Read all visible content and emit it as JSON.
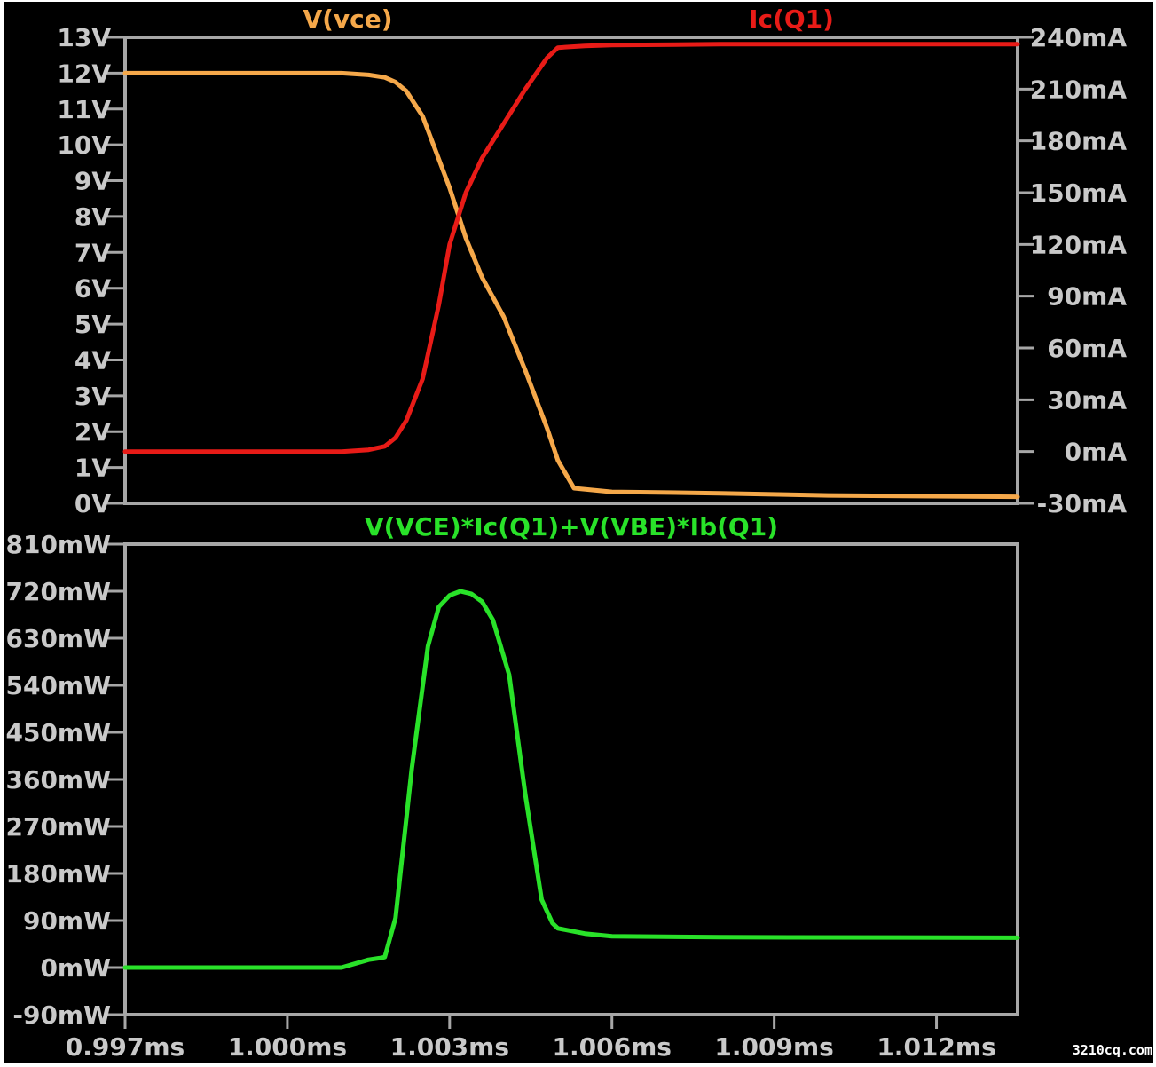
{
  "chart_data": [
    {
      "type": "line",
      "pane": "top",
      "x_unit": "ms",
      "xlim": [
        0.997,
        1.0135
      ],
      "x_ticks": [],
      "left_axis": {
        "ylim": [
          0,
          13
        ],
        "ticks": [
          {
            "value": 0,
            "label": "0V"
          },
          {
            "value": 1,
            "label": "1V"
          },
          {
            "value": 2,
            "label": "2V"
          },
          {
            "value": 3,
            "label": "3V"
          },
          {
            "value": 4,
            "label": "4V"
          },
          {
            "value": 5,
            "label": "5V"
          },
          {
            "value": 6,
            "label": "6V"
          },
          {
            "value": 7,
            "label": "7V"
          },
          {
            "value": 8,
            "label": "8V"
          },
          {
            "value": 9,
            "label": "9V"
          },
          {
            "value": 10,
            "label": "10V"
          },
          {
            "value": 11,
            "label": "11V"
          },
          {
            "value": 12,
            "label": "12V"
          },
          {
            "value": 13,
            "label": "13V"
          }
        ]
      },
      "right_axis": {
        "ylim": [
          -30,
          240
        ],
        "ticks": [
          {
            "value": -30,
            "label": "-30mA"
          },
          {
            "value": 0,
            "label": "0mA"
          },
          {
            "value": 30,
            "label": "30mA"
          },
          {
            "value": 60,
            "label": "60mA"
          },
          {
            "value": 90,
            "label": "90mA"
          },
          {
            "value": 120,
            "label": "120mA"
          },
          {
            "value": 150,
            "label": "150mA"
          },
          {
            "value": 180,
            "label": "180mA"
          },
          {
            "value": 210,
            "label": "210mA"
          },
          {
            "value": 240,
            "label": "240mA"
          }
        ]
      },
      "series": [
        {
          "name": "V(vce)",
          "color": "#f5a84a",
          "axis": "left",
          "label_position": "top-left",
          "x": [
            0.997,
            1.0,
            1.001,
            1.0015,
            1.0018,
            1.002,
            1.0022,
            1.0025,
            1.0028,
            1.003,
            1.0033,
            1.0036,
            1.004,
            1.0044,
            1.0048,
            1.005,
            1.0053,
            1.006,
            1.008,
            1.01,
            1.0135
          ],
          "y": [
            12.0,
            12.0,
            12.0,
            11.95,
            11.88,
            11.75,
            11.5,
            10.8,
            9.6,
            8.8,
            7.4,
            6.3,
            5.2,
            3.7,
            2.1,
            1.2,
            0.42,
            0.32,
            0.28,
            0.22,
            0.18
          ]
        },
        {
          "name": "Ic(Q1)",
          "color": "#e81b17",
          "axis": "right",
          "label_position": "top-right",
          "x": [
            0.997,
            1.0,
            1.001,
            1.0015,
            1.0018,
            1.002,
            1.0022,
            1.0025,
            1.0028,
            1.003,
            1.0033,
            1.0036,
            1.004,
            1.0044,
            1.0048,
            1.005,
            1.0055,
            1.006,
            1.008,
            1.0135
          ],
          "y": [
            0,
            0,
            0,
            1,
            3,
            8,
            18,
            42,
            85,
            120,
            150,
            170,
            190,
            210,
            228,
            234,
            235,
            235.5,
            236,
            236
          ]
        }
      ]
    },
    {
      "type": "line",
      "pane": "bottom",
      "title": "V(VCE)*Ic(Q1)+V(VBE)*Ib(Q1)",
      "x_unit": "ms",
      "xlim": [
        0.997,
        1.0135
      ],
      "x_ticks": [
        {
          "value": 0.997,
          "label": "0.997ms"
        },
        {
          "value": 1.0,
          "label": "1.000ms"
        },
        {
          "value": 1.003,
          "label": "1.003ms"
        },
        {
          "value": 1.006,
          "label": "1.006ms"
        },
        {
          "value": 1.009,
          "label": "1.009ms"
        },
        {
          "value": 1.012,
          "label": "1.012ms"
        }
      ],
      "left_axis": {
        "ylim": [
          -90,
          810
        ],
        "ticks": [
          {
            "value": -90,
            "label": "-90mW"
          },
          {
            "value": 0,
            "label": "0mW"
          },
          {
            "value": 90,
            "label": "90mW"
          },
          {
            "value": 180,
            "label": "180mW"
          },
          {
            "value": 270,
            "label": "270mW"
          },
          {
            "value": 360,
            "label": "360mW"
          },
          {
            "value": 450,
            "label": "450mW"
          },
          {
            "value": 540,
            "label": "540mW"
          },
          {
            "value": 630,
            "label": "630mW"
          },
          {
            "value": 720,
            "label": "720mW"
          },
          {
            "value": 810,
            "label": "810mW"
          }
        ]
      },
      "series": [
        {
          "name": "V(VCE)*Ic(Q1)+V(VBE)*Ib(Q1)",
          "color": "#29e229",
          "axis": "left",
          "x": [
            0.997,
            1.0,
            1.001,
            1.0015,
            1.0017,
            1.0018,
            1.002,
            1.0023,
            1.0026,
            1.0028,
            1.003,
            1.0032,
            1.0034,
            1.0036,
            1.0038,
            1.0041,
            1.0044,
            1.0047,
            1.0049,
            1.005,
            1.0055,
            1.006,
            1.008,
            1.0135
          ],
          "y": [
            0,
            0,
            0,
            15,
            18,
            20,
            95,
            380,
            615,
            690,
            712,
            720,
            715,
            700,
            665,
            560,
            330,
            130,
            85,
            75,
            65,
            60,
            58,
            57
          ]
        }
      ]
    }
  ],
  "watermark": "3210cq.com"
}
